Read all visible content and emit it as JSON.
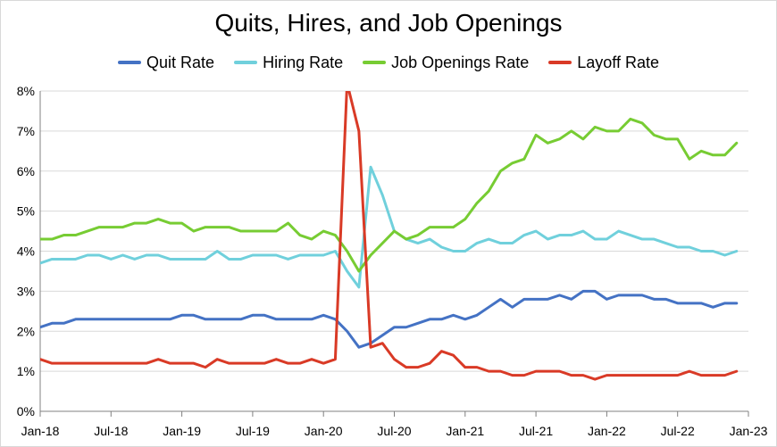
{
  "chart_data": {
    "type": "line",
    "title": "Quits, Hires, and Job Openings",
    "xlabel": "",
    "ylabel": "",
    "ylim": [
      0,
      8
    ],
    "y_ticks": [
      "0%",
      "1%",
      "2%",
      "3%",
      "4%",
      "5%",
      "6%",
      "7%",
      "8%"
    ],
    "x_ticks": [
      "Jan-18",
      "Jul-18",
      "Jan-19",
      "Jul-19",
      "Jan-20",
      "Jul-20",
      "Jan-21",
      "Jul-21",
      "Jan-22",
      "Jul-22",
      "Jan-23"
    ],
    "x_start": "2018-01",
    "x_end": "2023-01",
    "grid": "horizontal",
    "legend_position": "top",
    "x": [
      "2018-01",
      "2018-02",
      "2018-03",
      "2018-04",
      "2018-05",
      "2018-06",
      "2018-07",
      "2018-08",
      "2018-09",
      "2018-10",
      "2018-11",
      "2018-12",
      "2019-01",
      "2019-02",
      "2019-03",
      "2019-04",
      "2019-05",
      "2019-06",
      "2019-07",
      "2019-08",
      "2019-09",
      "2019-10",
      "2019-11",
      "2019-12",
      "2020-01",
      "2020-02",
      "2020-03",
      "2020-04",
      "2020-05",
      "2020-06",
      "2020-07",
      "2020-08",
      "2020-09",
      "2020-10",
      "2020-11",
      "2020-12",
      "2021-01",
      "2021-02",
      "2021-03",
      "2021-04",
      "2021-05",
      "2021-06",
      "2021-07",
      "2021-08",
      "2021-09",
      "2021-10",
      "2021-11",
      "2021-12",
      "2022-01",
      "2022-02",
      "2022-03",
      "2022-04",
      "2022-05",
      "2022-06",
      "2022-07",
      "2022-08",
      "2022-09",
      "2022-10",
      "2022-11",
      "2022-12"
    ],
    "series": [
      {
        "name": "Quit Rate",
        "color": "#4472c4",
        "values": [
          2.1,
          2.2,
          2.2,
          2.3,
          2.3,
          2.3,
          2.3,
          2.3,
          2.3,
          2.3,
          2.3,
          2.3,
          2.4,
          2.4,
          2.3,
          2.3,
          2.3,
          2.3,
          2.4,
          2.4,
          2.3,
          2.3,
          2.3,
          2.3,
          2.4,
          2.3,
          2.0,
          1.6,
          1.7,
          1.9,
          2.1,
          2.1,
          2.2,
          2.3,
          2.3,
          2.4,
          2.3,
          2.4,
          2.6,
          2.8,
          2.6,
          2.8,
          2.8,
          2.8,
          2.9,
          2.8,
          3.0,
          3.0,
          2.8,
          2.9,
          2.9,
          2.9,
          2.8,
          2.8,
          2.7,
          2.7,
          2.7,
          2.6,
          2.7,
          2.7
        ]
      },
      {
        "name": "Hiring Rate",
        "color": "#70d0dc",
        "values": [
          3.7,
          3.8,
          3.8,
          3.8,
          3.9,
          3.9,
          3.8,
          3.9,
          3.8,
          3.9,
          3.9,
          3.8,
          3.8,
          3.8,
          3.8,
          4.0,
          3.8,
          3.8,
          3.9,
          3.9,
          3.9,
          3.8,
          3.9,
          3.9,
          3.9,
          4.0,
          3.5,
          3.1,
          6.1,
          5.4,
          4.5,
          4.3,
          4.2,
          4.3,
          4.1,
          4.0,
          4.0,
          4.2,
          4.3,
          4.2,
          4.2,
          4.4,
          4.5,
          4.3,
          4.4,
          4.4,
          4.5,
          4.3,
          4.3,
          4.5,
          4.4,
          4.3,
          4.3,
          4.2,
          4.1,
          4.1,
          4.0,
          4.0,
          3.9,
          4.0
        ]
      },
      {
        "name": "Job Openings Rate",
        "color": "#77cc33",
        "values": [
          4.3,
          4.3,
          4.4,
          4.4,
          4.5,
          4.6,
          4.6,
          4.6,
          4.7,
          4.7,
          4.8,
          4.7,
          4.7,
          4.5,
          4.6,
          4.6,
          4.6,
          4.5,
          4.5,
          4.5,
          4.5,
          4.7,
          4.4,
          4.3,
          4.5,
          4.4,
          4.0,
          3.5,
          3.9,
          4.2,
          4.5,
          4.3,
          4.4,
          4.6,
          4.6,
          4.6,
          4.8,
          5.2,
          5.5,
          6.0,
          6.2,
          6.3,
          6.9,
          6.7,
          6.8,
          7.0,
          6.8,
          7.1,
          7.0,
          7.0,
          7.3,
          7.2,
          6.9,
          6.8,
          6.8,
          6.3,
          6.5,
          6.4,
          6.4,
          6.7
        ]
      },
      {
        "name": "Layoff Rate",
        "color": "#d93a26",
        "values": [
          1.3,
          1.2,
          1.2,
          1.2,
          1.2,
          1.2,
          1.2,
          1.2,
          1.2,
          1.2,
          1.3,
          1.2,
          1.2,
          1.2,
          1.1,
          1.3,
          1.2,
          1.2,
          1.2,
          1.2,
          1.3,
          1.2,
          1.2,
          1.3,
          1.2,
          1.3,
          8.2,
          7.0,
          1.6,
          1.7,
          1.3,
          1.1,
          1.1,
          1.2,
          1.5,
          1.4,
          1.1,
          1.1,
          1.0,
          1.0,
          0.9,
          0.9,
          1.0,
          1.0,
          1.0,
          0.9,
          0.9,
          0.8,
          0.9,
          0.9,
          0.9,
          0.9,
          0.9,
          0.9,
          0.9,
          1.0,
          0.9,
          0.9,
          0.9,
          1.0
        ]
      }
    ]
  }
}
